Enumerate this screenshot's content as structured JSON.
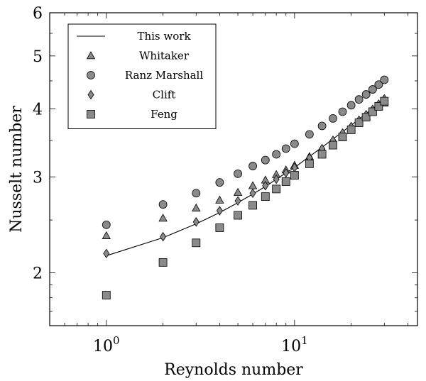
{
  "chart_data": {
    "type": "scatter",
    "xlabel": "Reynolds number",
    "ylabel": "Nusselt number",
    "x_scale": "log",
    "y_scale": "log",
    "xlim": [
      0.5,
      45
    ],
    "ylim": [
      1.6,
      6
    ],
    "x_ticks": [
      {
        "value": 1,
        "label_base": "10",
        "label_exp": "0"
      },
      {
        "value": 10,
        "label_base": "10",
        "label_exp": "1"
      }
    ],
    "y_ticks": [
      {
        "value": 2,
        "label": "2"
      },
      {
        "value": 3,
        "label": "3"
      },
      {
        "value": 4,
        "label": "4"
      },
      {
        "value": 5,
        "label": "5"
      },
      {
        "value": 6,
        "label": "6"
      }
    ],
    "legend_position": "top-left",
    "series": [
      {
        "name": "This work",
        "marker": "line",
        "x": [
          1,
          2,
          3,
          4,
          5,
          6,
          7,
          8,
          9,
          10,
          12,
          14,
          16,
          18,
          20,
          22,
          24,
          26,
          28,
          30
        ],
        "y": [
          2.15,
          2.32,
          2.46,
          2.58,
          2.69,
          2.79,
          2.88,
          2.97,
          3.05,
          3.12,
          3.27,
          3.4,
          3.52,
          3.63,
          3.73,
          3.83,
          3.92,
          4.0,
          4.08,
          4.16
        ]
      },
      {
        "name": "Whitaker",
        "marker": "triangle",
        "x": [
          1,
          2,
          3,
          4,
          5,
          6,
          7,
          8,
          9,
          10,
          12,
          14,
          16,
          18,
          20,
          22,
          24,
          26,
          28,
          30
        ],
        "y": [
          2.34,
          2.52,
          2.63,
          2.72,
          2.81,
          2.89,
          2.96,
          3.03,
          3.09,
          3.15,
          3.27,
          3.38,
          3.5,
          3.6,
          3.7,
          3.8,
          3.88,
          3.96,
          4.04,
          4.1
        ]
      },
      {
        "name": "Ranz Marshall",
        "marker": "circle",
        "x": [
          1,
          2,
          3,
          4,
          5,
          6,
          7,
          8,
          9,
          10,
          12,
          14,
          16,
          18,
          20,
          22,
          24,
          26,
          28,
          30
        ],
        "y": [
          2.45,
          2.67,
          2.8,
          2.93,
          3.04,
          3.14,
          3.22,
          3.3,
          3.38,
          3.45,
          3.59,
          3.72,
          3.84,
          3.95,
          4.06,
          4.16,
          4.25,
          4.34,
          4.43,
          4.52
        ]
      },
      {
        "name": "Clift",
        "marker": "diamond",
        "x": [
          1,
          2,
          3,
          4,
          5,
          6,
          7,
          8,
          9,
          10,
          12,
          14,
          16,
          18,
          20,
          22,
          24,
          26,
          28,
          30
        ],
        "y": [
          2.17,
          2.33,
          2.48,
          2.6,
          2.71,
          2.8,
          2.89,
          2.97,
          3.05,
          3.12,
          3.25,
          3.38,
          3.5,
          3.61,
          3.71,
          3.81,
          3.9,
          3.99,
          4.08,
          4.17
        ]
      },
      {
        "name": "Feng",
        "marker": "square",
        "x": [
          1,
          2,
          3,
          4,
          5,
          6,
          7,
          8,
          9,
          10,
          12,
          14,
          16,
          18,
          20,
          22,
          24,
          26,
          28,
          30
        ],
        "y": [
          1.82,
          2.09,
          2.27,
          2.42,
          2.55,
          2.66,
          2.76,
          2.85,
          2.94,
          3.02,
          3.17,
          3.3,
          3.43,
          3.55,
          3.66,
          3.77,
          3.86,
          3.95,
          4.04,
          4.13
        ]
      }
    ],
    "colors": {
      "marker_fill": "#8a8a8a",
      "marker_stroke": "#000000",
      "line": "#000000",
      "axis": "#000000"
    }
  }
}
